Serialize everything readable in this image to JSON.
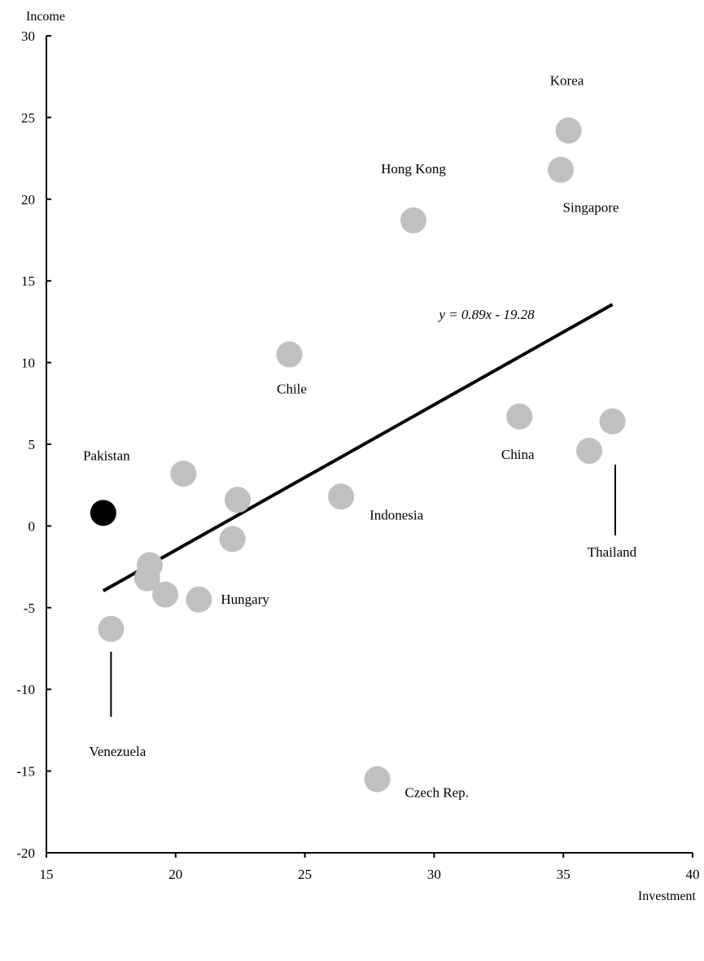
{
  "chart_data": {
    "type": "scatter",
    "xlabel": "Investment",
    "ylabel": "Income",
    "xlim": [
      15,
      40
    ],
    "ylim": [
      -20,
      30
    ],
    "xticks": [
      15,
      20,
      25,
      30,
      35,
      40
    ],
    "yticks": [
      -20,
      -15,
      -10,
      -5,
      0,
      5,
      10,
      15,
      20,
      25,
      30
    ],
    "grid": false,
    "legend": "none",
    "colors": {
      "highlight": "#000000",
      "other": "#c0c0c0",
      "trend": "#000000"
    },
    "points": [
      {
        "x": 35.2,
        "y": 24.2,
        "label": "Korea",
        "highlight": false
      },
      {
        "x": 34.9,
        "y": 21.8,
        "label": "Singapore",
        "highlight": false
      },
      {
        "x": 29.2,
        "y": 18.7,
        "label": "Hong Kong",
        "highlight": false
      },
      {
        "x": 24.4,
        "y": 10.5,
        "label": "Chile",
        "highlight": false
      },
      {
        "x": 33.3,
        "y": 6.7,
        "label": "China",
        "highlight": false
      },
      {
        "x": 36.9,
        "y": 6.4,
        "label": "",
        "highlight": false
      },
      {
        "x": 36.0,
        "y": 4.6,
        "label": "Thailand",
        "highlight": false
      },
      {
        "x": 17.2,
        "y": 0.8,
        "label": "Pakistan",
        "highlight": true
      },
      {
        "x": 20.3,
        "y": 3.2,
        "label": "",
        "highlight": false
      },
      {
        "x": 22.4,
        "y": 1.6,
        "label": "",
        "highlight": false
      },
      {
        "x": 26.4,
        "y": 1.8,
        "label": "Indonesia",
        "highlight": false
      },
      {
        "x": 22.2,
        "y": -0.8,
        "label": "",
        "highlight": false
      },
      {
        "x": 19.0,
        "y": -2.4,
        "label": "",
        "highlight": false
      },
      {
        "x": 18.9,
        "y": -3.2,
        "label": "",
        "highlight": false
      },
      {
        "x": 19.6,
        "y": -4.2,
        "label": "",
        "highlight": false
      },
      {
        "x": 20.9,
        "y": -4.5,
        "label": "Hungary",
        "highlight": false
      },
      {
        "x": 17.5,
        "y": -6.3,
        "label": "Venezuela",
        "highlight": false
      },
      {
        "x": 27.8,
        "y": -15.5,
        "label": "Czech Rep.",
        "highlight": false
      }
    ],
    "trendline": {
      "equation": "y = 0.89x - 19.28",
      "slope": 0.89,
      "intercept": -19.28,
      "x_range": [
        17.2,
        36.9
      ]
    }
  }
}
